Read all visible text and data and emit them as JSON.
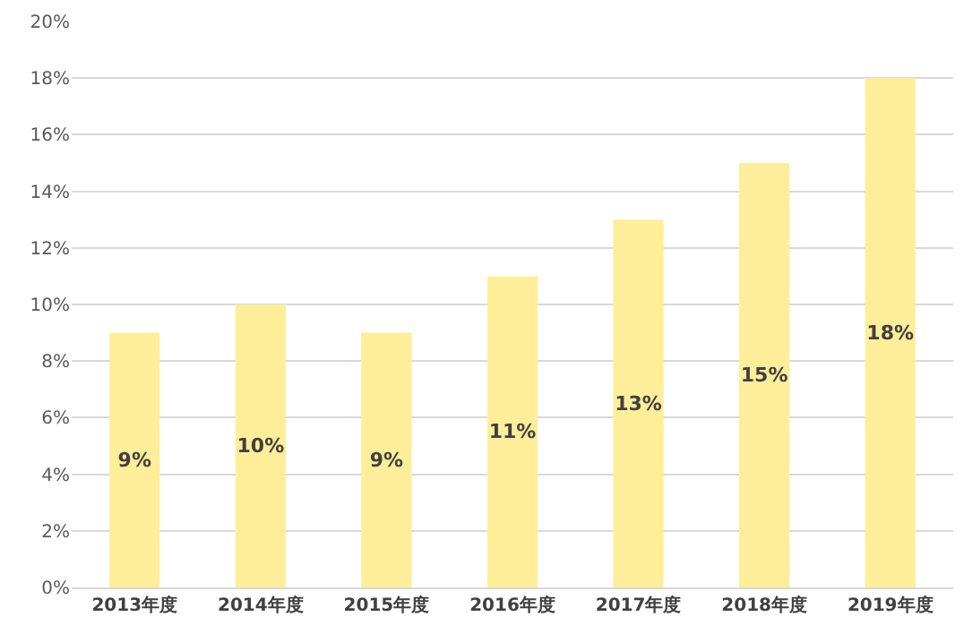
{
  "chart_data": {
    "type": "bar",
    "categories": [
      "2013年度",
      "2014年度",
      "2015年度",
      "2016年度",
      "2017年度",
      "2018年度",
      "2019年度"
    ],
    "values": [
      9,
      10,
      9,
      11,
      13,
      15,
      18
    ],
    "value_labels": [
      "9%",
      "10%",
      "9%",
      "11%",
      "13%",
      "15%",
      "18%"
    ],
    "color": "#ffee99",
    "ylim": [
      0,
      20
    ],
    "yticks": [
      {
        "value": 0,
        "label": "0%"
      },
      {
        "value": 2,
        "label": "2%"
      },
      {
        "value": 4,
        "label": "4%"
      },
      {
        "value": 6,
        "label": "6%"
      },
      {
        "value": 8,
        "label": "8%"
      },
      {
        "value": 10,
        "label": "10%"
      },
      {
        "value": 12,
        "label": "12%"
      },
      {
        "value": 14,
        "label": "14%"
      },
      {
        "value": 16,
        "label": "16%"
      },
      {
        "value": 18,
        "label": "18%"
      },
      {
        "value": 20,
        "label": "20%"
      }
    ],
    "grid": "y"
  }
}
